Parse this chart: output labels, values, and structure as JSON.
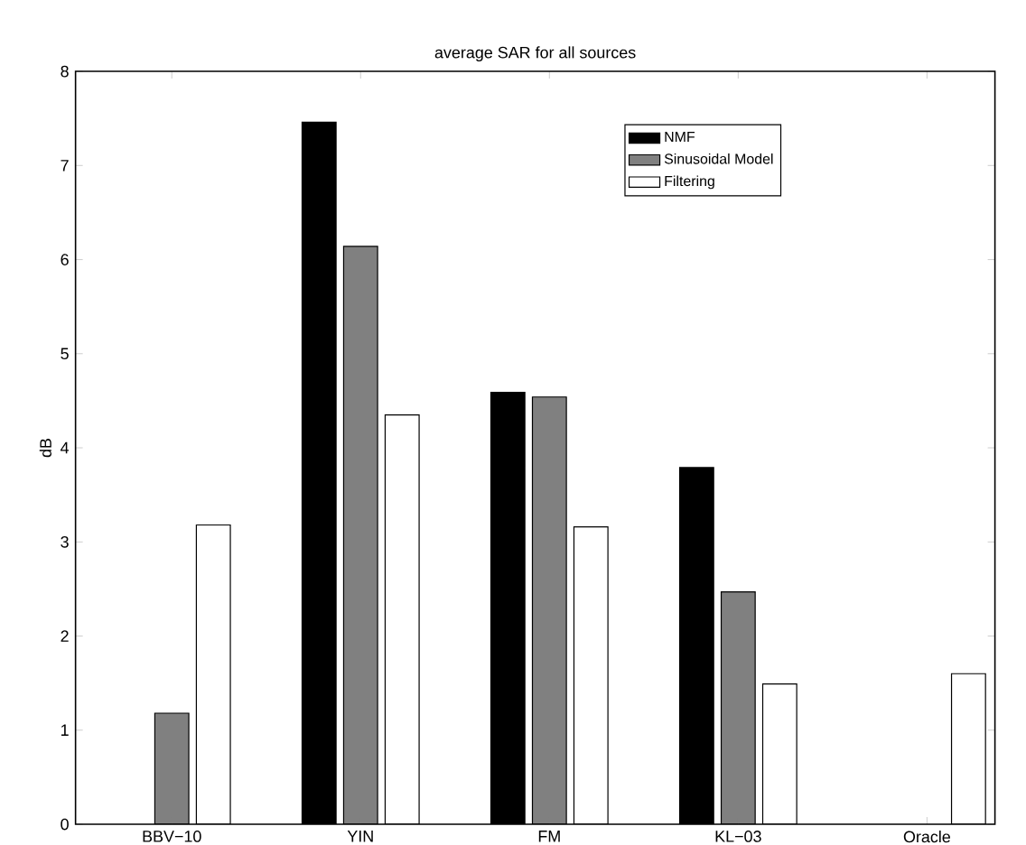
{
  "chart_data": {
    "type": "bar",
    "title": "average SAR for all sources",
    "ylabel": "dB",
    "categories": [
      "BBV−10",
      "YIN",
      "FM",
      "KL−03",
      "Oracle"
    ],
    "series": [
      {
        "name": "NMF",
        "color": "#000000",
        "values": [
          null,
          7.46,
          4.59,
          3.79,
          null
        ]
      },
      {
        "name": "Sinusoidal Model",
        "color": "#808080",
        "values": [
          1.18,
          6.14,
          4.54,
          2.47,
          null
        ]
      },
      {
        "name": "Filtering",
        "color": "#ffffff",
        "values": [
          3.18,
          4.35,
          3.16,
          1.49,
          1.6
        ]
      }
    ],
    "ylim": [
      0,
      8
    ],
    "yticks": [
      0,
      1,
      2,
      3,
      4,
      5,
      6,
      7,
      8
    ],
    "legend": "top right"
  }
}
